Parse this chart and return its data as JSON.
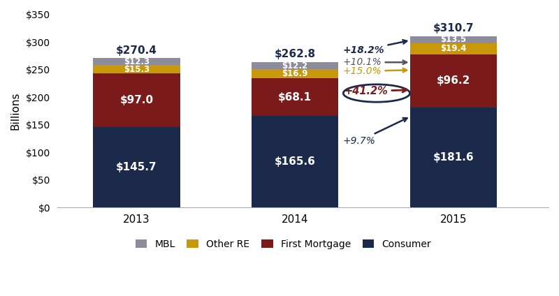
{
  "years": [
    "2013",
    "2014",
    "2015"
  ],
  "consumer": [
    145.7,
    165.6,
    181.6
  ],
  "first_mortgage": [
    97.0,
    68.1,
    96.2
  ],
  "other_re": [
    15.3,
    16.9,
    19.4
  ],
  "mbl": [
    12.3,
    12.2,
    13.5
  ],
  "totals": [
    270.4,
    262.8,
    310.7
  ],
  "colors": {
    "consumer": "#1b2a4a",
    "first_mortgage": "#7b1a1a",
    "other_re": "#c8980a",
    "mbl": "#8c8c9a"
  },
  "legend_labels": [
    "MBL",
    "Other RE",
    "First Mortgage",
    "Consumer"
  ],
  "ylabel": "Billions",
  "ylim": [
    0,
    350
  ],
  "yticks": [
    0,
    50,
    100,
    150,
    200,
    250,
    300,
    350
  ],
  "ytick_labels": [
    "$0",
    "$50",
    "$100",
    "$150",
    "$200",
    "$250",
    "$300",
    "$350"
  ],
  "background_color": "#ffffff",
  "bar_width": 0.55
}
